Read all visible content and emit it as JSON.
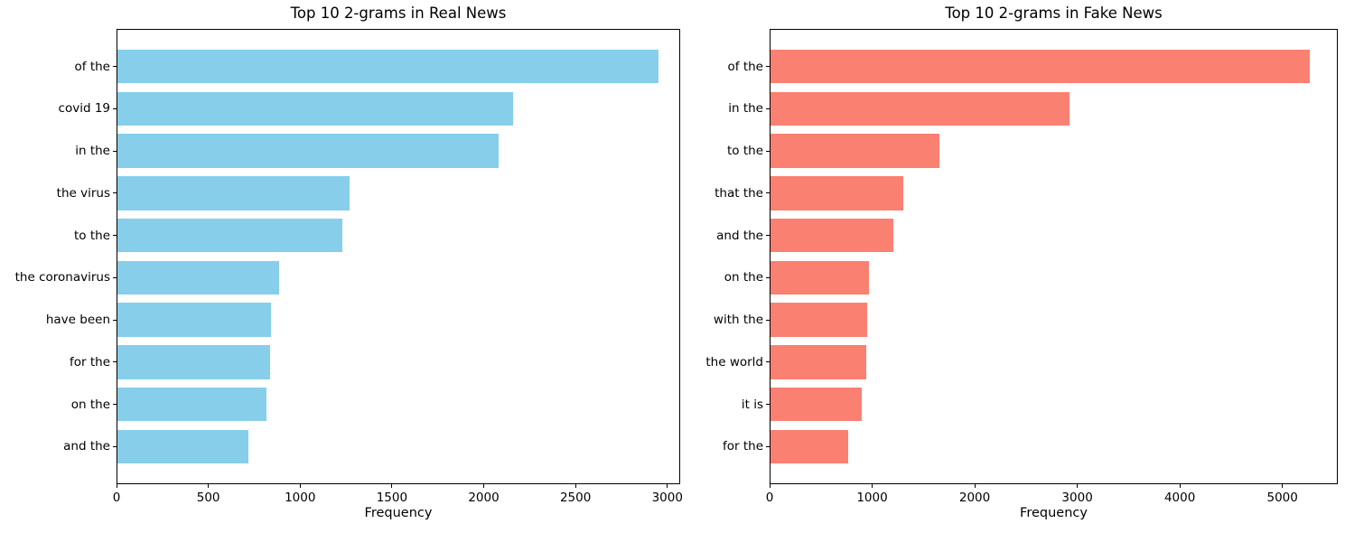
{
  "figure": {
    "background": "#ffffff",
    "text_color": "#000000"
  },
  "chart_data": [
    {
      "type": "bar",
      "orientation": "horizontal",
      "title": "Top 10 2-grams in Real News",
      "xlabel": "Frequency",
      "categories": [
        "of the",
        "covid 19",
        "in the",
        "the virus",
        "to the",
        "the coronavirus",
        "have been",
        "for the",
        "on the",
        "and the"
      ],
      "values": [
        2950,
        2160,
        2080,
        1270,
        1230,
        885,
        840,
        835,
        815,
        720
      ],
      "bar_color": "#87CEEB",
      "xlim": [
        0,
        3070
      ],
      "xticks": [
        0,
        500,
        1000,
        1500,
        2000,
        2500,
        3000
      ],
      "grid": false,
      "legend": "none"
    },
    {
      "type": "bar",
      "orientation": "horizontal",
      "title": "Top 10 2-grams in Fake News",
      "xlabel": "Frequency",
      "categories": [
        "of the",
        "in the",
        "to the",
        "that the",
        "and the",
        "on the",
        "with the",
        "the world",
        "it is",
        "for the"
      ],
      "values": [
        5270,
        2920,
        1660,
        1300,
        1210,
        970,
        950,
        945,
        900,
        770
      ],
      "bar_color": "#FA8072",
      "xlim": [
        0,
        5540
      ],
      "xticks": [
        0,
        1000,
        2000,
        3000,
        4000,
        5000
      ],
      "grid": false,
      "legend": "none"
    }
  ]
}
